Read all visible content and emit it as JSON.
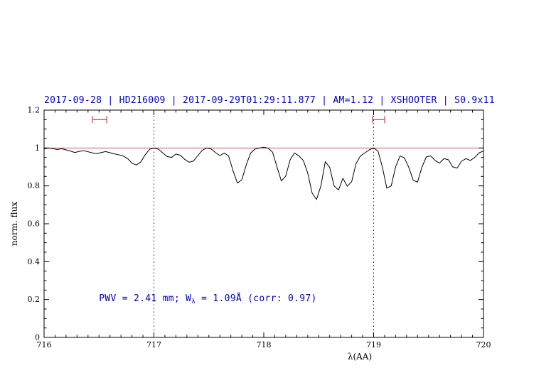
{
  "chart_data": {
    "type": "line",
    "title": "2017-09-28 | HD216009 | 2017-09-29T01:29:11.877 | AM=1.12 | XSHOOTER | S0.9x11",
    "title_color": "#0000cd",
    "xlabel": "λ(AA)",
    "ylabel": "norm. flux",
    "xlim": [
      716,
      720
    ],
    "ylim": [
      0,
      1.2
    ],
    "xtick_values": [
      716,
      717,
      718,
      719,
      720
    ],
    "xtick_labels": [
      "716",
      "717",
      "718",
      "719",
      "720"
    ],
    "ytick_values": [
      0,
      0.2,
      0.4,
      0.6,
      0.8,
      1,
      1.2
    ],
    "ytick_labels": [
      "0",
      "0.2",
      "0.4",
      "0.6",
      "0.8",
      "1",
      "1.2"
    ],
    "grid": false,
    "legend": "none",
    "vlines": {
      "x": [
        717,
        719
      ],
      "style": "dotted",
      "color": "#000000"
    },
    "continuum": {
      "y": 1.0,
      "color": "#cc4444"
    },
    "range_markers": {
      "y": 1.15,
      "color": "#cc4444",
      "intervals": [
        [
          716.44,
          716.57
        ],
        [
          718.99,
          719.1
        ]
      ]
    },
    "series": [
      {
        "name": "normalized-spectrum",
        "color": "#000000",
        "x": [
          716.0,
          716.04,
          716.08,
          716.12,
          716.16,
          716.2,
          716.24,
          716.28,
          716.32,
          716.36,
          716.4,
          716.44,
          716.48,
          716.52,
          716.56,
          716.6,
          716.64,
          716.68,
          716.72,
          716.76,
          716.8,
          716.84,
          716.88,
          716.92,
          716.96,
          717.0,
          717.04,
          717.08,
          717.12,
          717.16,
          717.2,
          717.24,
          717.28,
          717.32,
          717.36,
          717.4,
          717.44,
          717.48,
          717.52,
          717.56,
          717.6,
          717.64,
          717.68,
          717.72,
          717.76,
          717.8,
          717.84,
          717.88,
          717.92,
          717.96,
          718.0,
          718.04,
          718.08,
          718.12,
          718.16,
          718.2,
          718.24,
          718.28,
          718.32,
          718.36,
          718.4,
          718.44,
          718.48,
          718.52,
          718.56,
          718.6,
          718.64,
          718.68,
          718.72,
          718.76,
          718.8,
          718.84,
          718.88,
          718.92,
          718.96,
          719.0,
          719.04,
          719.08,
          719.12,
          719.16,
          719.2,
          719.24,
          719.28,
          719.32,
          719.36,
          719.4,
          719.44,
          719.48,
          719.52,
          719.56,
          719.6,
          719.64,
          719.68,
          719.72,
          719.76,
          719.8,
          719.84,
          719.88,
          719.92,
          719.96,
          720.0
        ],
        "y": [
          0.995,
          1.0,
          0.997,
          0.992,
          0.996,
          0.99,
          0.984,
          0.976,
          0.982,
          0.986,
          0.98,
          0.974,
          0.97,
          0.976,
          0.981,
          0.975,
          0.969,
          0.964,
          0.958,
          0.944,
          0.92,
          0.91,
          0.926,
          0.964,
          0.993,
          1.0,
          0.994,
          0.974,
          0.955,
          0.95,
          0.968,
          0.962,
          0.94,
          0.925,
          0.931,
          0.96,
          0.988,
          1.0,
          0.995,
          0.976,
          0.96,
          0.973,
          0.958,
          0.88,
          0.815,
          0.832,
          0.91,
          0.973,
          0.994,
          1.0,
          1.004,
          0.999,
          0.978,
          0.9,
          0.826,
          0.852,
          0.938,
          0.974,
          0.958,
          0.934,
          0.868,
          0.762,
          0.728,
          0.8,
          0.928,
          0.898,
          0.8,
          0.778,
          0.84,
          0.798,
          0.822,
          0.918,
          0.958,
          0.974,
          0.99,
          1.0,
          0.984,
          0.898,
          0.788,
          0.8,
          0.9,
          0.958,
          0.948,
          0.898,
          0.83,
          0.82,
          0.9,
          0.953,
          0.958,
          0.934,
          0.92,
          0.944,
          0.938,
          0.9,
          0.894,
          0.93,
          0.944,
          0.934,
          0.95,
          0.974,
          0.984
        ]
      }
    ],
    "annotation": {
      "prefix": "PWV = 2.41 mm; W",
      "sub": "λ",
      "suffix": " = 1.09Å (corr: 0.97)",
      "x": 716.5,
      "y": 0.2,
      "color": "#0000cd"
    }
  }
}
